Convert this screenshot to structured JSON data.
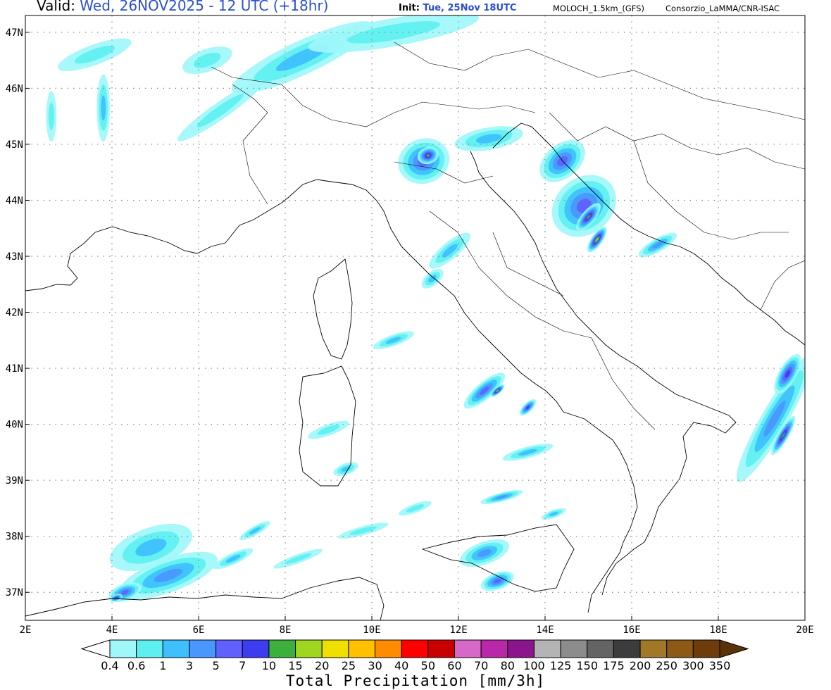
{
  "header": {
    "valid_label": "Valid:",
    "valid_date": "Wed, 26NOV2025 - 12 UTC (+18hr)",
    "init_label": "Init:",
    "init_date": "Tue, 25Nov 18UTC",
    "model": "MOLOCH_1.5km_(GFS)",
    "credit": "Consorzio_LaMMA/CNR-ISAC"
  },
  "axes": {
    "lon_min": 2,
    "lon_max": 20,
    "lat_min": 36.5,
    "lat_max": 47.3,
    "lon_ticks": [
      "2E",
      "4E",
      "6E",
      "8E",
      "10E",
      "12E",
      "14E",
      "16E",
      "18E",
      "20E"
    ],
    "lat_ticks": [
      "37N",
      "38N",
      "39N",
      "40N",
      "41N",
      "42N",
      "43N",
      "44N",
      "45N",
      "46N",
      "47N"
    ]
  },
  "colorbar": {
    "title": "Total Precipitation [mm/3h]",
    "labels": [
      "0.4",
      "0.6",
      "1",
      "3",
      "5",
      "7",
      "10",
      "15",
      "20",
      "25",
      "30",
      "40",
      "50",
      "60",
      "70",
      "80",
      "100",
      "125",
      "150",
      "175",
      "200",
      "250",
      "300",
      "350"
    ],
    "colors": [
      "#9ff7fa",
      "#5ef0f0",
      "#3ec0ff",
      "#4a96ff",
      "#6060ff",
      "#3c3cf0",
      "#3cb03c",
      "#9ed620",
      "#f0e000",
      "#ffc000",
      "#ff8c00",
      "#ff0000",
      "#c80000",
      "#d868c8",
      "#b828a8",
      "#8c148c",
      "#b4b4b4",
      "#8c8c8c",
      "#646464",
      "#3c3c3c",
      "#a07828",
      "#8c5a14",
      "#6e3c0a"
    ],
    "under_color": "#ffffff",
    "over_color": "#5a3208"
  },
  "precip_cells": [
    {
      "lon": 3.6,
      "lat": 46.6,
      "rx": 0.9,
      "ry": 0.18,
      "rot": -20,
      "level": 1
    },
    {
      "lon": 8.4,
      "lat": 46.55,
      "rx": 1.8,
      "ry": 0.3,
      "rot": -25,
      "level": 2
    },
    {
      "lon": 6.2,
      "lat": 46.5,
      "rx": 0.6,
      "ry": 0.2,
      "rot": -20,
      "level": 1
    },
    {
      "lon": 10.5,
      "lat": 47.0,
      "rx": 2.0,
      "ry": 0.25,
      "rot": -10,
      "level": 1
    },
    {
      "lon": 3.8,
      "lat": 45.65,
      "rx": 0.15,
      "ry": 0.6,
      "rot": 0,
      "level": 2
    },
    {
      "lon": 2.6,
      "lat": 45.5,
      "rx": 0.12,
      "ry": 0.45,
      "rot": 0,
      "level": 1
    },
    {
      "lon": 6.5,
      "lat": 45.6,
      "rx": 1.2,
      "ry": 0.15,
      "rot": -35,
      "level": 1
    },
    {
      "lon": 11.2,
      "lat": 44.7,
      "rx": 0.6,
      "ry": 0.4,
      "rot": -20,
      "level": 4
    },
    {
      "lon": 11.3,
      "lat": 44.8,
      "rx": 0.25,
      "ry": 0.15,
      "rot": -20,
      "level": 6
    },
    {
      "lon": 12.7,
      "lat": 45.1,
      "rx": 0.8,
      "ry": 0.2,
      "rot": -10,
      "level": 2
    },
    {
      "lon": 14.4,
      "lat": 44.7,
      "rx": 0.6,
      "ry": 0.3,
      "rot": -40,
      "level": 4
    },
    {
      "lon": 14.9,
      "lat": 43.9,
      "rx": 0.8,
      "ry": 0.5,
      "rot": -40,
      "level": 4
    },
    {
      "lon": 15.0,
      "lat": 43.7,
      "rx": 0.4,
      "ry": 0.12,
      "rot": -50,
      "level": 6
    },
    {
      "lon": 15.2,
      "lat": 43.3,
      "rx": 0.35,
      "ry": 0.1,
      "rot": -55,
      "level": 7
    },
    {
      "lon": 16.6,
      "lat": 43.2,
      "rx": 0.5,
      "ry": 0.12,
      "rot": -30,
      "level": 3
    },
    {
      "lon": 11.8,
      "lat": 43.1,
      "rx": 0.6,
      "ry": 0.15,
      "rot": -40,
      "level": 2
    },
    {
      "lon": 11.4,
      "lat": 42.6,
      "rx": 0.3,
      "ry": 0.12,
      "rot": -40,
      "level": 2
    },
    {
      "lon": 10.5,
      "lat": 41.5,
      "rx": 0.5,
      "ry": 0.1,
      "rot": -20,
      "level": 2
    },
    {
      "lon": 12.6,
      "lat": 40.6,
      "rx": 0.6,
      "ry": 0.15,
      "rot": -40,
      "level": 4
    },
    {
      "lon": 12.9,
      "lat": 40.6,
      "rx": 0.2,
      "ry": 0.06,
      "rot": -40,
      "level": 7
    },
    {
      "lon": 13.6,
      "lat": 40.3,
      "rx": 0.25,
      "ry": 0.08,
      "rot": -45,
      "level": 5
    },
    {
      "lon": 19.3,
      "lat": 40.1,
      "rx": 0.3,
      "ry": 1.3,
      "rot": 30,
      "level": 3
    },
    {
      "lon": 19.5,
      "lat": 39.8,
      "rx": 0.12,
      "ry": 0.4,
      "rot": 30,
      "level": 6
    },
    {
      "lon": 19.6,
      "lat": 40.9,
      "rx": 0.2,
      "ry": 0.4,
      "rot": 30,
      "level": 5
    },
    {
      "lon": 9.0,
      "lat": 39.9,
      "rx": 0.5,
      "ry": 0.1,
      "rot": -20,
      "level": 1
    },
    {
      "lon": 9.4,
      "lat": 39.2,
      "rx": 0.3,
      "ry": 0.1,
      "rot": -20,
      "level": 2
    },
    {
      "lon": 13.6,
      "lat": 39.5,
      "rx": 0.6,
      "ry": 0.1,
      "rot": -15,
      "level": 2
    },
    {
      "lon": 13.0,
      "lat": 38.7,
      "rx": 0.5,
      "ry": 0.08,
      "rot": -15,
      "level": 3
    },
    {
      "lon": 4.9,
      "lat": 37.8,
      "rx": 1.0,
      "ry": 0.35,
      "rot": -20,
      "level": 2
    },
    {
      "lon": 5.3,
      "lat": 37.3,
      "rx": 1.2,
      "ry": 0.3,
      "rot": -20,
      "level": 3
    },
    {
      "lon": 4.3,
      "lat": 37.0,
      "rx": 0.4,
      "ry": 0.15,
      "rot": -20,
      "level": 4
    },
    {
      "lon": 4.1,
      "lat": 36.9,
      "rx": 0.15,
      "ry": 0.06,
      "rot": -20,
      "level": 6
    },
    {
      "lon": 6.8,
      "lat": 37.6,
      "rx": 0.5,
      "ry": 0.1,
      "rot": -25,
      "level": 2
    },
    {
      "lon": 7.3,
      "lat": 38.1,
      "rx": 0.4,
      "ry": 0.08,
      "rot": -30,
      "level": 2
    },
    {
      "lon": 8.3,
      "lat": 37.6,
      "rx": 0.6,
      "ry": 0.08,
      "rot": -20,
      "level": 1
    },
    {
      "lon": 9.8,
      "lat": 38.1,
      "rx": 0.6,
      "ry": 0.08,
      "rot": -15,
      "level": 1
    },
    {
      "lon": 12.6,
      "lat": 37.7,
      "rx": 0.6,
      "ry": 0.2,
      "rot": -20,
      "level": 3
    },
    {
      "lon": 12.9,
      "lat": 37.2,
      "rx": 0.4,
      "ry": 0.15,
      "rot": -20,
      "level": 4
    },
    {
      "lon": 11.0,
      "lat": 38.5,
      "rx": 0.4,
      "ry": 0.08,
      "rot": -20,
      "level": 1
    },
    {
      "lon": 14.2,
      "lat": 38.4,
      "rx": 0.3,
      "ry": 0.07,
      "rot": -20,
      "level": 2
    }
  ]
}
